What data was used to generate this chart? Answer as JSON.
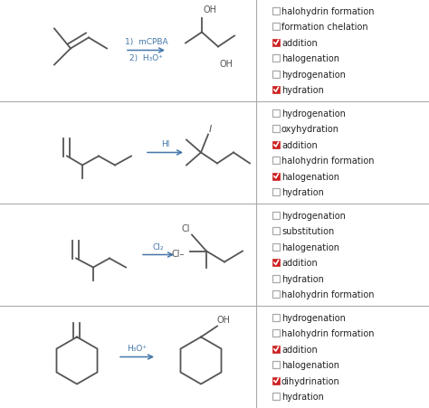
{
  "background_color": "#ffffff",
  "divider_color": "#aaaaaa",
  "checkbox_checked_color": "#cc2222",
  "checkbox_unchecked_color": "#aaaaaa",
  "text_color": "#222222",
  "arrow_color": "#4477aa",
  "mol_color": "#555555",
  "figsize": [
    4.74,
    4.52
  ],
  "dpi": 100,
  "rows": [
    {
      "arrow_label_top": "1)  mCPBA",
      "arrow_label_bot": "2)  H₃O⁺",
      "options": [
        {
          "text": "halohydrin formation",
          "checked": false
        },
        {
          "text": "formation chelation",
          "checked": false
        },
        {
          "text": "addition",
          "checked": true
        },
        {
          "text": "halogenation",
          "checked": false
        },
        {
          "text": "hydrogenation",
          "checked": false
        },
        {
          "text": "hydration",
          "checked": true
        }
      ]
    },
    {
      "arrow_label_top": "HI",
      "arrow_label_bot": "",
      "options": [
        {
          "text": "hydrogenation",
          "checked": false
        },
        {
          "text": "oxyhydration",
          "checked": false
        },
        {
          "text": "addition",
          "checked": true
        },
        {
          "text": "halohydrin formation",
          "checked": false
        },
        {
          "text": "halogenation",
          "checked": true
        },
        {
          "text": "hydration",
          "checked": false
        }
      ]
    },
    {
      "arrow_label_top": "Cl₂",
      "arrow_label_bot": "",
      "options": [
        {
          "text": "hydrogenation",
          "checked": false
        },
        {
          "text": "substitution",
          "checked": false
        },
        {
          "text": "halogenation",
          "checked": false
        },
        {
          "text": "addition",
          "checked": true
        },
        {
          "text": "hydration",
          "checked": false
        },
        {
          "text": "halohydrin formation",
          "checked": false
        }
      ]
    },
    {
      "arrow_label_top": "H₃O⁺",
      "arrow_label_bot": "",
      "options": [
        {
          "text": "hydrogenation",
          "checked": false
        },
        {
          "text": "halohydrin formation",
          "checked": false
        },
        {
          "text": "addition",
          "checked": true
        },
        {
          "text": "halogenation",
          "checked": false
        },
        {
          "text": "dihydrination",
          "checked": true
        },
        {
          "text": "hydration",
          "checked": false
        }
      ]
    }
  ]
}
